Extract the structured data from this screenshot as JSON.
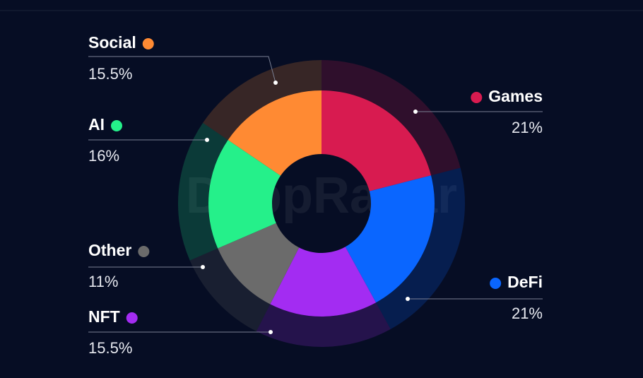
{
  "chart_data": {
    "type": "donut",
    "watermark": "DappRadar",
    "categories": [
      "Games",
      "DeFi",
      "NFT",
      "Other",
      "AI",
      "Social"
    ],
    "values": [
      21,
      21,
      15.5,
      11,
      16,
      15.5
    ],
    "value_labels": [
      "21%",
      "21%",
      "15.5%",
      "11%",
      "16%",
      "15.5%"
    ],
    "colors": [
      "#d81b50",
      "#0a66ff",
      "#a32cf2",
      "#6b6b6b",
      "#25f08a",
      "#ff8a33"
    ]
  }
}
